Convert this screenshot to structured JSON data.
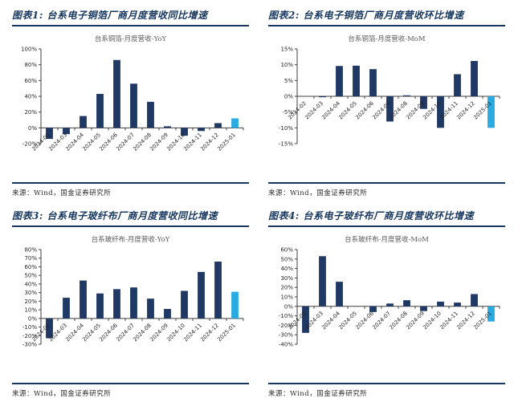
{
  "colors": {
    "bar_navy": "#1f3864",
    "bar_highlight": "#29abe2",
    "header_blue": "#17375e",
    "axis": "#3f3f3f",
    "tick_text": "#262626",
    "chart_title_gray": "#595959"
  },
  "source_label": "来源：Wind，国金证券研究所",
  "chart_data": [
    {
      "type": "bar",
      "figure_label": "图表1: 台系电子铜箔厂商月度营收同比增速",
      "title": "台系铜箔-月度营收-YoY",
      "categories": [
        "2024-02",
        "2024-03",
        "2024-04",
        "2024-05",
        "2024-06",
        "2024-07",
        "2024-08",
        "2024-09",
        "2024-10",
        "2024-11",
        "2024-12",
        "2025-01"
      ],
      "values": [
        -14,
        -8,
        15,
        43,
        86,
        56,
        33,
        2,
        -10,
        -4,
        6,
        12
      ],
      "ylim": [
        -20,
        100
      ],
      "ytick_step": 20,
      "highlight_index": 11,
      "legend": "none",
      "grid": false,
      "source": "来源：Wind，国金证券研究所"
    },
    {
      "type": "bar",
      "figure_label": "图表2: 台系电子铜箔厂商月度营收环比增速",
      "title": "台系铜箔-月度营收-MoM",
      "categories": [
        "2024-02",
        "2024-03",
        "2024-04",
        "2024-05",
        "2024-06",
        "2024-07",
        "2024-08",
        "2024-09",
        "2024-10",
        "2024-11",
        "2024-12",
        "2025-01"
      ],
      "values": [
        0,
        -0.3,
        9.6,
        9.7,
        8.6,
        -8,
        0.3,
        -4,
        -10,
        7,
        11.2,
        -10
      ],
      "ylim": [
        -15,
        15
      ],
      "ytick_step": 5,
      "highlight_index": 11,
      "legend": "none",
      "grid": false,
      "source": "来源：Wind，国金证券研究所"
    },
    {
      "type": "bar",
      "figure_label": "图表3: 台系电子玻纤布厂商月度营收同比增速",
      "title": "台系玻纤布-月度营收-YoY",
      "categories": [
        "2024-02",
        "2024-03",
        "2024-04",
        "2024-05",
        "2024-06",
        "2024-07",
        "2024-08",
        "2024-09",
        "2024-10",
        "2024-11",
        "2024-12",
        "2025-01"
      ],
      "values": [
        -23,
        24,
        44,
        29,
        34,
        36,
        23,
        11,
        32,
        54,
        66,
        31
      ],
      "ylim": [
        -30,
        80
      ],
      "ytick_step": 10,
      "highlight_index": 11,
      "legend": "none",
      "grid": false,
      "source": "来源：Wind，国金证券研究所"
    },
    {
      "type": "bar",
      "figure_label": "图表4: 台系电子玻纤布厂商月度营收环比增速",
      "title": "台系玻纤布-月度营收-MoM",
      "categories": [
        "2024-02",
        "2024-03",
        "2024-04",
        "2024-05",
        "2024-06",
        "2024-07",
        "2024-08",
        "2024-09",
        "2024-10",
        "2024-11",
        "2024-12",
        "2025-01"
      ],
      "values": [
        -28,
        53,
        26,
        0.3,
        -6,
        3,
        6.5,
        -5,
        5,
        4,
        13,
        -16
      ],
      "ylim": [
        -40,
        60
      ],
      "ytick_step": 10,
      "highlight_index": 11,
      "legend": "none",
      "grid": false,
      "source": "来源：Wind，国金证券研究所"
    }
  ]
}
